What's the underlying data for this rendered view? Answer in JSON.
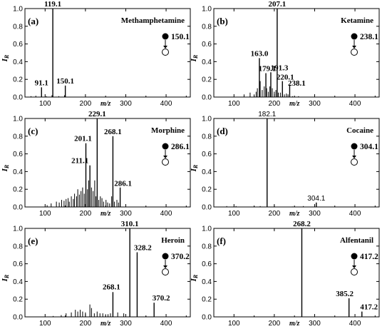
{
  "chart_data": [
    {
      "type": "bar",
      "panel": "(a)",
      "compound": "Methamphetamine",
      "precursor": "150.1",
      "xlabel": "m/z",
      "ylabel": "IR",
      "xlim": [
        50,
        460
      ],
      "ylim": [
        0,
        1.0
      ],
      "xticks": [
        100,
        200,
        300,
        400
      ],
      "yticks": [
        0.0,
        0.2,
        0.4,
        0.6,
        0.8,
        1.0
      ],
      "peaks": [
        {
          "mz": 91.1,
          "intensity": 0.11,
          "label": "91.1"
        },
        {
          "mz": 119.1,
          "intensity": 1.0,
          "label": "119.1"
        },
        {
          "mz": 150.1,
          "intensity": 0.13,
          "label": "150.1"
        }
      ],
      "minor": [
        [
          65,
          0.01
        ],
        [
          77,
          0.015
        ],
        [
          103,
          0.01
        ],
        [
          117,
          0.02
        ],
        [
          134,
          0.01
        ],
        [
          148,
          0.02
        ]
      ]
    },
    {
      "type": "bar",
      "panel": "(b)",
      "compound": "Ketamine",
      "precursor": "238.1",
      "xlabel": "m/z",
      "ylabel": "IR",
      "xlim": [
        50,
        460
      ],
      "ylim": [
        0,
        1.0
      ],
      "xticks": [
        100,
        200,
        300,
        400
      ],
      "yticks": [
        0.0,
        0.2,
        0.4,
        0.6,
        0.8,
        1.0
      ],
      "peaks": [
        {
          "mz": 163.0,
          "intensity": 0.44,
          "label": "163.0"
        },
        {
          "mz": 179.1,
          "intensity": 0.27,
          "label": "179.1"
        },
        {
          "mz": 191.3,
          "intensity": 0.28,
          "label": "191.3"
        },
        {
          "mz": 207.1,
          "intensity": 1.0,
          "label": "207.1"
        },
        {
          "mz": 220.1,
          "intensity": 0.18,
          "label": "220.1"
        },
        {
          "mz": 238.1,
          "intensity": 0.13,
          "label": "238.1"
        }
      ],
      "minor": [
        [
          125,
          0.03
        ],
        [
          140,
          0.05
        ],
        [
          150,
          0.03
        ],
        [
          155,
          0.06
        ],
        [
          158,
          0.1
        ],
        [
          165,
          0.18
        ],
        [
          170,
          0.08
        ],
        [
          175,
          0.12
        ],
        [
          181,
          0.1
        ],
        [
          185,
          0.06
        ],
        [
          189,
          0.12
        ],
        [
          195,
          0.1
        ],
        [
          200,
          0.06
        ],
        [
          204,
          0.08
        ],
        [
          210,
          0.05
        ],
        [
          215,
          0.05
        ],
        [
          225,
          0.03
        ],
        [
          230,
          0.04
        ],
        [
          234,
          0.03
        ],
        [
          245,
          0.01
        ],
        [
          260,
          0.01
        ]
      ]
    },
    {
      "type": "bar",
      "panel": "(c)",
      "compound": "Morphine",
      "precursor": "286.1",
      "xlabel": "m/z",
      "ylabel": "IR",
      "xlim": [
        50,
        460
      ],
      "ylim": [
        0,
        1.0
      ],
      "xticks": [
        100,
        200,
        300,
        400
      ],
      "yticks": [
        0.0,
        0.2,
        0.4,
        0.6,
        0.8,
        1.0
      ],
      "peaks": [
        {
          "mz": 201.1,
          "intensity": 0.72,
          "label": "201.1"
        },
        {
          "mz": 211.1,
          "intensity": 0.47,
          "label": "211.1"
        },
        {
          "mz": 229.1,
          "intensity": 1.0,
          "label": "229.1"
        },
        {
          "mz": 268.1,
          "intensity": 0.8,
          "label": "268.1"
        },
        {
          "mz": 286.1,
          "intensity": 0.22,
          "label": "286.1"
        }
      ],
      "minor": [
        [
          105,
          0.02
        ],
        [
          115,
          0.04
        ],
        [
          128,
          0.06
        ],
        [
          135,
          0.05
        ],
        [
          141,
          0.08
        ],
        [
          147,
          0.07
        ],
        [
          152,
          0.09
        ],
        [
          157,
          0.1
        ],
        [
          160,
          0.06
        ],
        [
          165,
          0.12
        ],
        [
          170,
          0.09
        ],
        [
          173,
          0.15
        ],
        [
          178,
          0.12
        ],
        [
          181,
          0.2
        ],
        [
          185,
          0.14
        ],
        [
          189,
          0.18
        ],
        [
          193,
          0.22
        ],
        [
          197,
          0.15
        ],
        [
          205,
          0.2
        ],
        [
          208,
          0.3
        ],
        [
          215,
          0.22
        ],
        [
          219,
          0.18
        ],
        [
          223,
          0.3
        ],
        [
          226,
          0.12
        ],
        [
          233,
          0.08
        ],
        [
          237,
          0.12
        ],
        [
          241,
          0.1
        ],
        [
          245,
          0.06
        ],
        [
          251,
          0.08
        ],
        [
          255,
          0.05
        ],
        [
          260,
          0.04
        ],
        [
          265,
          0.12
        ],
        [
          272,
          0.06
        ],
        [
          278,
          0.08
        ],
        [
          282,
          0.05
        ]
      ]
    },
    {
      "type": "bar",
      "panel": "(d)",
      "compound": "Cocaine",
      "precursor": "304.1",
      "xlabel": "m/z",
      "ylabel": "IR",
      "xlim": [
        50,
        460
      ],
      "ylim": [
        0,
        1.0
      ],
      "xticks": [
        100,
        200,
        300,
        400
      ],
      "yticks": [
        0.0,
        0.2,
        0.4,
        0.6,
        0.8,
        1.0
      ],
      "peaks": [
        {
          "mz": 182.1,
          "intensity": 1.0,
          "label": "182.1"
        },
        {
          "mz": 304.1,
          "intensity": 0.05,
          "label": "304.1"
        }
      ],
      "minor": [
        [
          82,
          0.01
        ],
        [
          105,
          0.01
        ],
        [
          150,
          0.01
        ],
        [
          165,
          0.01
        ],
        [
          200,
          0.015
        ],
        [
          245,
          0.005
        ],
        [
          272,
          0.01
        ]
      ]
    },
    {
      "type": "bar",
      "panel": "(e)",
      "compound": "Heroin",
      "precursor": "370.2",
      "xlabel": "m/z",
      "ylabel": "IR",
      "xlim": [
        50,
        460
      ],
      "ylim": [
        0,
        1.0
      ],
      "xticks": [
        100,
        200,
        300,
        400
      ],
      "yticks": [
        0.0,
        0.2,
        0.4,
        0.6,
        0.8,
        1.0
      ],
      "peaks": [
        {
          "mz": 268.1,
          "intensity": 0.28,
          "label": "268.1"
        },
        {
          "mz": 310.1,
          "intensity": 1.0,
          "label": "310.1"
        },
        {
          "mz": 328.2,
          "intensity": 0.73,
          "label": "328.2"
        },
        {
          "mz": 370.2,
          "intensity": 0.16,
          "label": "370.2"
        }
      ],
      "minor": [
        [
          120,
          0.01
        ],
        [
          140,
          0.02
        ],
        [
          152,
          0.04
        ],
        [
          165,
          0.05
        ],
        [
          175,
          0.08
        ],
        [
          181,
          0.06
        ],
        [
          187,
          0.08
        ],
        [
          193,
          0.06
        ],
        [
          200,
          0.05
        ],
        [
          211,
          0.14
        ],
        [
          215,
          0.1
        ],
        [
          222,
          0.04
        ],
        [
          229,
          0.06
        ],
        [
          236,
          0.04
        ],
        [
          243,
          0.04
        ],
        [
          250,
          0.03
        ],
        [
          256,
          0.03
        ],
        [
          262,
          0.04
        ],
        [
          280,
          0.05
        ],
        [
          295,
          0.04
        ],
        [
          350,
          0.01
        ]
      ]
    },
    {
      "type": "bar",
      "panel": "(f)",
      "compound": "Alfentanil",
      "precursor": "417.2",
      "xlabel": "m/z",
      "ylabel": "IR",
      "xlim": [
        50,
        460
      ],
      "ylim": [
        0,
        1.0
      ],
      "xticks": [
        100,
        200,
        300,
        400
      ],
      "yticks": [
        0.0,
        0.2,
        0.4,
        0.6,
        0.8,
        1.0
      ],
      "peaks": [
        {
          "mz": 268.2,
          "intensity": 1.0,
          "label": "268.2"
        },
        {
          "mz": 385.2,
          "intensity": 0.21,
          "label": "385.2"
        },
        {
          "mz": 417.2,
          "intensity": 0.06,
          "label": "417.2"
        }
      ],
      "minor": [
        [
          197,
          0.005
        ]
      ]
    }
  ]
}
